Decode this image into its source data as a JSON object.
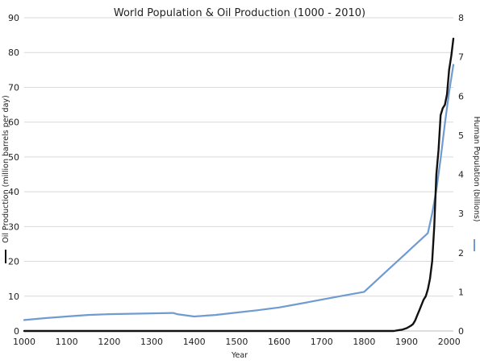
{
  "chart_data": {
    "type": "line",
    "title": "World Population & Oil Production (1000 - 2010)",
    "xlabel": "Year",
    "ylabel_left": "Oil Production (million barrels per day)",
    "ylabel_right": "Human Population (billions)",
    "xlim": [
      1000,
      2010
    ],
    "ylim_left": [
      0,
      90
    ],
    "ylim_right": [
      0,
      8
    ],
    "x_ticks": [
      "1000",
      "1100",
      "1200",
      "1300",
      "1400",
      "1500",
      "1600",
      "1700",
      "1800",
      "1900",
      "2000"
    ],
    "y_ticks_left": [
      "0",
      "10",
      "20",
      "30",
      "40",
      "50",
      "60",
      "70",
      "80",
      "90"
    ],
    "y_ticks_right": [
      "0",
      "1",
      "2",
      "3",
      "4",
      "5",
      "6",
      "7",
      "8"
    ],
    "grid": "horizontal",
    "legend": "inline next to axis titles",
    "series": [
      {
        "axis": "left",
        "color": "#111111",
        "x": [
          1000,
          1850,
          1870,
          1880,
          1890,
          1900,
          1910,
          1915,
          1920,
          1925,
          1930,
          1935,
          1940,
          1945,
          1950,
          1955,
          1960,
          1965,
          1970,
          1975,
          1980,
          1985,
          1990,
          1995,
          2000,
          2005,
          2010
        ],
        "y": [
          0,
          0,
          0,
          0.2,
          0.4,
          0.8,
          1.5,
          2,
          3,
          4.5,
          6,
          7.5,
          9,
          10,
          12,
          15,
          20,
          30,
          45,
          52,
          62,
          64,
          65,
          68,
          75,
          79,
          84
        ]
      },
      {
        "axis": "right",
        "color": "#6f9bd0",
        "x": [
          1000,
          1050,
          1100,
          1150,
          1200,
          1250,
          1300,
          1350,
          1360,
          1400,
          1450,
          1500,
          1550,
          1600,
          1650,
          1700,
          1750,
          1800,
          1850,
          1900,
          1950,
          1960,
          1970,
          1980,
          1990,
          2000,
          2010
        ],
        "y": [
          0.28,
          0.33,
          0.37,
          0.41,
          0.43,
          0.44,
          0.45,
          0.46,
          0.43,
          0.37,
          0.41,
          0.47,
          0.53,
          0.6,
          0.7,
          0.8,
          0.9,
          1.0,
          1.5,
          2.0,
          2.5,
          3.0,
          3.6,
          4.4,
          5.3,
          6.1,
          6.8
        ]
      }
    ]
  }
}
